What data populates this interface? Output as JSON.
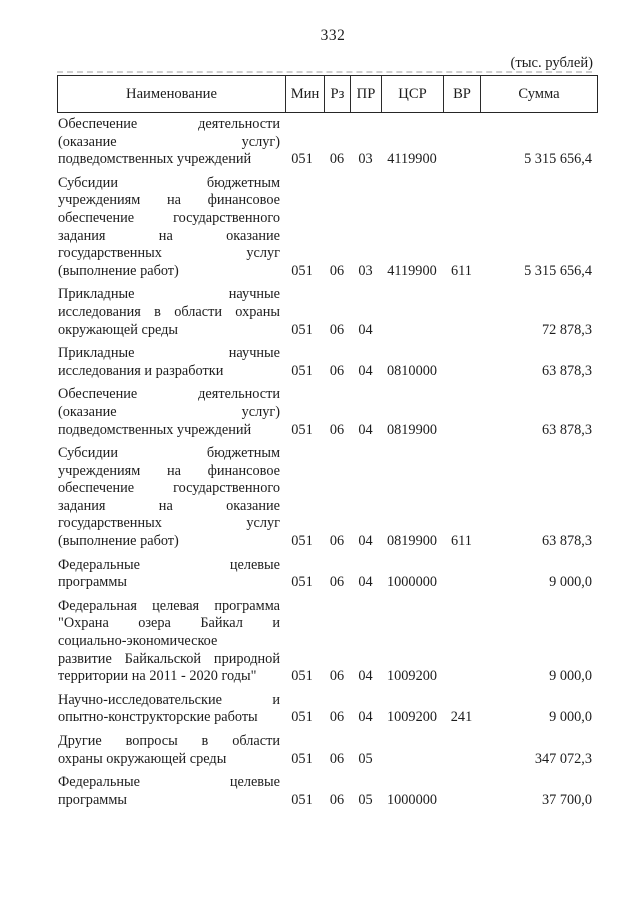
{
  "page": {
    "number": "332",
    "units_note": "(тыс. рублей)"
  },
  "colors": {
    "paper": "#ffffff",
    "ink": "#1d1d1d",
    "border": "#262626"
  },
  "table": {
    "headers": [
      "Наименование",
      "Мин",
      "Рз",
      "ПР",
      "ЦСР",
      "ВР",
      "Сумма"
    ],
    "rows": [
      {
        "name": "Обеспечение деятельности (оказание услуг) подведомственных учреждений",
        "name_lines": [
          "Обеспечение деятельности",
          "(оказание услуг)",
          "подведомственных учреждений"
        ],
        "min": "051",
        "rz": "06",
        "pr": "03",
        "csr": "4119900",
        "vr": "",
        "sum": "5 315 656,4"
      },
      {
        "name": "Субсидии бюджетным учреждениям на финансовое обеспечение государственного задания на оказание государственных услуг (выполнение работ)",
        "name_lines": [
          "Субсидии бюджетным",
          "учреждениям на финансовое",
          "обеспечение государственного",
          "задания на оказание",
          "государственных услуг",
          "(выполнение работ)"
        ],
        "min": "051",
        "rz": "06",
        "pr": "03",
        "csr": "4119900",
        "vr": "611",
        "sum": "5 315 656,4"
      },
      {
        "name": "Прикладные научные исследования в области охраны окружающей среды",
        "name_lines": [
          "Прикладные научные",
          "исследования в области охраны",
          "окружающей среды"
        ],
        "min": "051",
        "rz": "06",
        "pr": "04",
        "csr": "",
        "vr": "",
        "sum": "72 878,3"
      },
      {
        "name": "Прикладные научные исследования и разработки",
        "name_lines": [
          "Прикладные научные",
          "исследования и разработки"
        ],
        "min": "051",
        "rz": "06",
        "pr": "04",
        "csr": "0810000",
        "vr": "",
        "sum": "63 878,3"
      },
      {
        "name": "Обеспечение деятельности (оказание услуг) подведомственных учреждений",
        "name_lines": [
          "Обеспечение деятельности",
          "(оказание услуг)",
          "подведомственных учреждений"
        ],
        "min": "051",
        "rz": "06",
        "pr": "04",
        "csr": "0819900",
        "vr": "",
        "sum": "63 878,3"
      },
      {
        "name": "Субсидии бюджетным учреждениям на финансовое обеспечение государственного задания на оказание государственных услуг (выполнение работ)",
        "name_lines": [
          "Субсидии бюджетным",
          "учреждениям на финансовое",
          "обеспечение государственного",
          "задания на оказание",
          "государственных услуг",
          "(выполнение работ)"
        ],
        "min": "051",
        "rz": "06",
        "pr": "04",
        "csr": "0819900",
        "vr": "611",
        "sum": "63 878,3"
      },
      {
        "name": "Федеральные целевые программы",
        "name_lines": [
          "Федеральные целевые",
          "программы"
        ],
        "min": "051",
        "rz": "06",
        "pr": "04",
        "csr": "1000000",
        "vr": "",
        "sum": "9 000,0"
      },
      {
        "name": "Федеральная целевая программа \"Охрана озера Байкал и социально-экономическое развитие Байкальской природной территории на 2011 - 2020 годы\"",
        "name_lines": [
          "Федеральная целевая программа",
          "\"Охрана озера Байкал и",
          "социально-экономическое",
          "развитие Байкальской природной",
          "территории на 2011 - 2020 годы\""
        ],
        "min": "051",
        "rz": "06",
        "pr": "04",
        "csr": "1009200",
        "vr": "",
        "sum": "9 000,0"
      },
      {
        "name": "Научно-исследовательские и опытно-конструкторские работы",
        "name_lines": [
          "Научно-исследовательские и",
          "опытно-конструкторские работы"
        ],
        "min": "051",
        "rz": "06",
        "pr": "04",
        "csr": "1009200",
        "vr": "241",
        "sum": "9 000,0"
      },
      {
        "name": "Другие вопросы в области охраны окружающей среды",
        "name_lines": [
          "Другие вопросы в области",
          "охраны окружающей среды"
        ],
        "min": "051",
        "rz": "06",
        "pr": "05",
        "csr": "",
        "vr": "",
        "sum": "347 072,3"
      },
      {
        "name": "Федеральные целевые программы",
        "name_lines": [
          "Федеральные целевые",
          "программы"
        ],
        "min": "051",
        "rz": "06",
        "pr": "05",
        "csr": "1000000",
        "vr": "",
        "sum": "37 700,0"
      }
    ]
  }
}
